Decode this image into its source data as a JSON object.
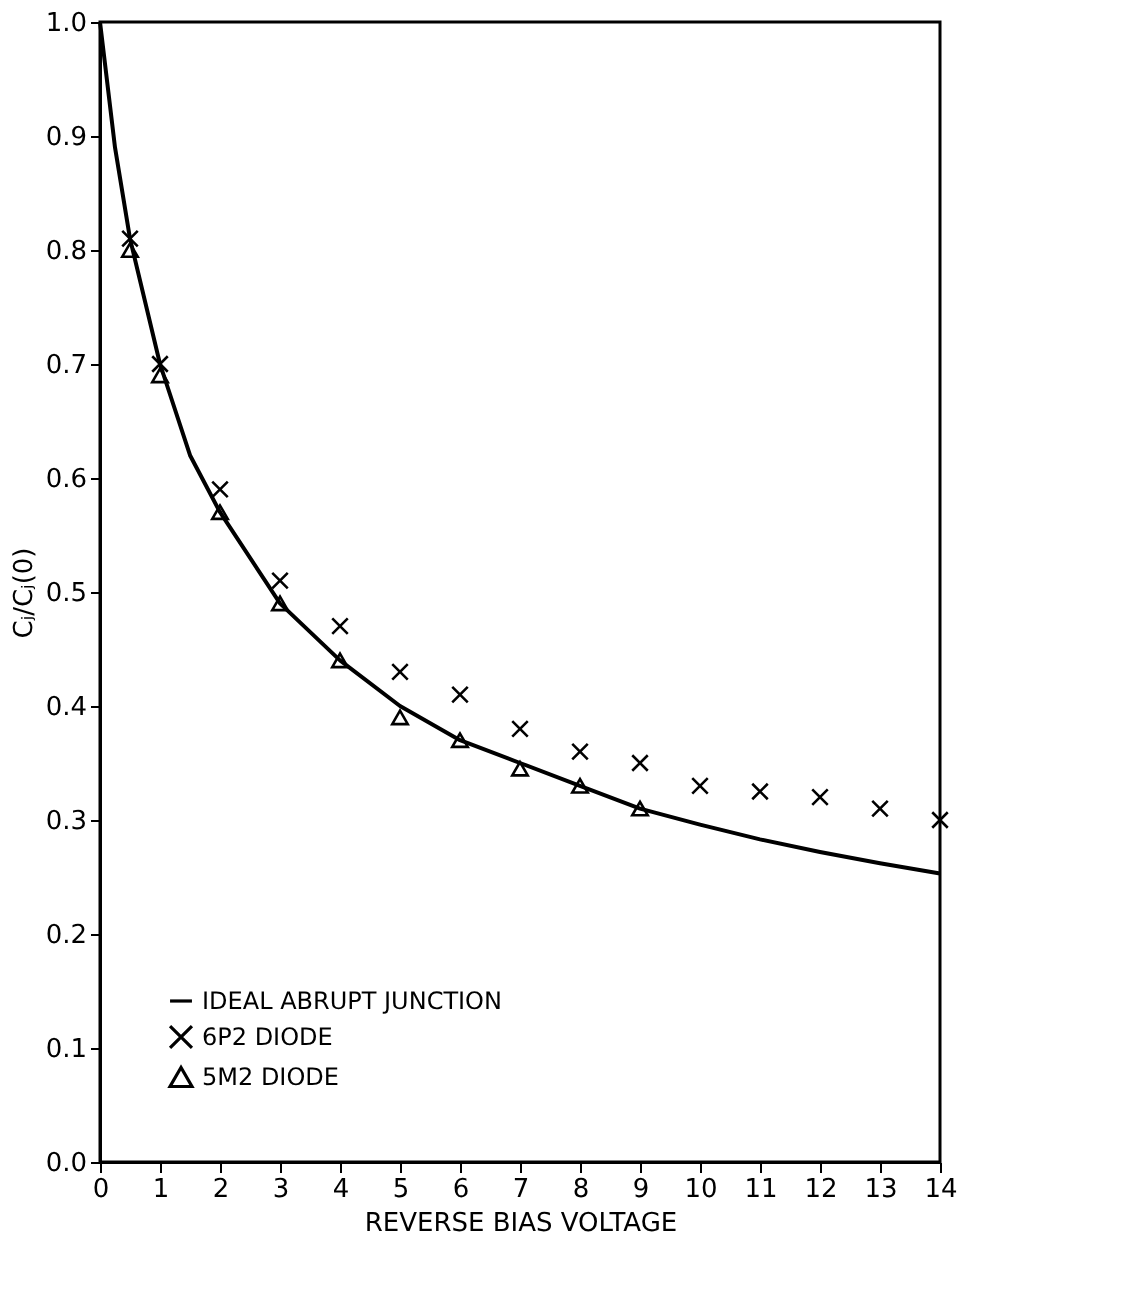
{
  "chart_data": {
    "type": "scatter",
    "xlabel": "REVERSE BIAS VOLTAGE",
    "ylabel": "Cⱼ/Cⱼ(0)",
    "xlim": [
      0,
      14
    ],
    "xticks": [
      0,
      1,
      2,
      3,
      4,
      5,
      6,
      7,
      8,
      9,
      10,
      11,
      12,
      13,
      14
    ],
    "ylim": [
      0,
      1
    ],
    "yticks": [
      {
        "value": 0,
        "label": "0.0"
      },
      {
        "value": 0.1,
        "label": "0.1"
      },
      {
        "value": 0.2,
        "label": "0.2"
      },
      {
        "value": 0.3,
        "label": "0.3"
      },
      {
        "value": 0.4,
        "label": "0.4"
      },
      {
        "value": 0.5,
        "label": "0.5"
      },
      {
        "value": 0.6,
        "label": "0.6"
      },
      {
        "value": 0.7,
        "label": "0.7"
      },
      {
        "value": 0.8,
        "label": "0.8"
      },
      {
        "value": 0.9,
        "label": "0.9"
      },
      {
        "value": 1,
        "label": "1.0"
      }
    ],
    "grid": false,
    "legend": "bottom left",
    "series": [
      {
        "name": "IDEAL ABRUPT JUNCTION",
        "type": "line",
        "color": "#000000",
        "marker": "none",
        "line_style": "solid",
        "x": [
          0,
          0.25,
          0.5,
          1,
          1.5,
          2,
          3,
          4,
          5,
          6,
          7,
          8,
          9,
          10,
          11,
          12,
          13,
          14
        ],
        "values": [
          1.0,
          0.89,
          0.81,
          0.7,
          0.62,
          0.57,
          0.49,
          0.44,
          0.4,
          0.37,
          0.35,
          0.33,
          0.31,
          0.296,
          0.283,
          0.272,
          0.262,
          0.253
        ]
      },
      {
        "name": "6P2 DIODE",
        "color": "#000000",
        "marker": "cross",
        "x": [
          0.5,
          1,
          2,
          3,
          4,
          5,
          6,
          7,
          8,
          9,
          10,
          11,
          12,
          13,
          14
        ],
        "values": [
          0.81,
          0.7,
          0.59,
          0.51,
          0.47,
          0.43,
          0.41,
          0.38,
          0.36,
          0.35,
          0.33,
          0.325,
          0.32,
          0.31,
          0.3
        ]
      },
      {
        "name": "5M2 DIODE",
        "color": "#000000",
        "marker": "triangle",
        "x": [
          0.5,
          1,
          2,
          3,
          4,
          5,
          6,
          7,
          8,
          9
        ],
        "values": [
          0.8,
          0.69,
          0.57,
          0.49,
          0.44,
          0.39,
          0.37,
          0.345,
          0.33,
          0.31
        ]
      }
    ]
  }
}
